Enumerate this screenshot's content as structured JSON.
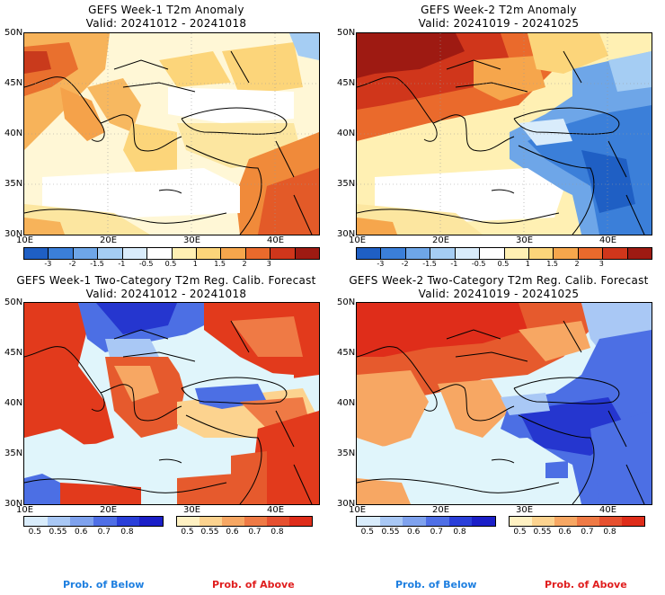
{
  "panels": [
    {
      "title": "GEFS Week-1 T2m Anomaly",
      "valid": "Valid: 20241012 - 20241018",
      "kind": "anomaly"
    },
    {
      "title": "GEFS Week-2 T2m Anomaly",
      "valid": "Valid: 20241019 - 20241025",
      "kind": "anomaly"
    },
    {
      "title": "GEFS Week-1 Two-Category T2m Reg. Calib. Forecast",
      "valid": "Valid: 20241012 - 20241018",
      "kind": "prob"
    },
    {
      "title": "GEFS Week-2 Two-Category T2m Reg. Calib. Forecast",
      "valid": "Valid: 20241019 - 20241025",
      "kind": "prob"
    }
  ],
  "axes": {
    "lat_labels": [
      "50N",
      "45N",
      "40N",
      "35N",
      "30N"
    ],
    "lon_labels": [
      "10E",
      "20E",
      "30E",
      "40E"
    ]
  },
  "anomaly_colorbar": {
    "labels": [
      "-3",
      "-2",
      "-1.5",
      "-1",
      "-0.5",
      "0.5",
      "1",
      "1.5",
      "2",
      "3"
    ],
    "colors": [
      "#1f5fc4",
      "#3b7fd9",
      "#6ea6e8",
      "#a5cdf3",
      "#d9ecfb",
      "#ffffff",
      "#fff0b3",
      "#fcd57a",
      "#f6a64c",
      "#ea6a2c",
      "#d0361b",
      "#9e1a12"
    ]
  },
  "prob_colorbar": {
    "below_labels": [
      "0.5",
      "0.55",
      "0.6",
      "0.7",
      "0.8"
    ],
    "above_labels": [
      "0.5",
      "0.55",
      "0.6",
      "0.7",
      "0.8"
    ],
    "below_colors": [
      "#d9ecfb",
      "#a9c8f5",
      "#7fa2ee",
      "#4f6fe6",
      "#2a3fd9",
      "#1b1fc8"
    ],
    "above_colors": [
      "#fff1c2",
      "#fcd38f",
      "#f7a763",
      "#ef7a45",
      "#e6502f",
      "#df2d1a"
    ],
    "below_word": "Prob. of Below",
    "above_word": "Prob. of Above",
    "below_word_color": "#1e7fe0",
    "above_word_color": "#e01e1e"
  }
}
